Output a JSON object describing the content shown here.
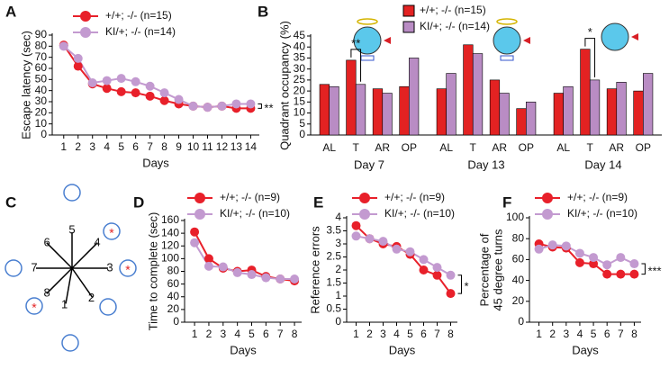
{
  "chart_data": [
    {
      "type": "line",
      "panel_label": "A",
      "ylabel": "Escape latency (sec)",
      "xlabel": "Days",
      "x": [
        1,
        2,
        3,
        4,
        5,
        6,
        7,
        8,
        9,
        10,
        11,
        12,
        13,
        14
      ],
      "xlim": [
        0.2,
        14.6
      ],
      "xticks": [
        1,
        2,
        3,
        4,
        5,
        6,
        7,
        8,
        9,
        10,
        11,
        12,
        13,
        14
      ],
      "ylim": [
        0,
        90
      ],
      "yticks": [
        0,
        10,
        20,
        30,
        40,
        50,
        60,
        70,
        80,
        90
      ],
      "series": [
        {
          "name": "+/+; -/- (n=15)",
          "color": "#e8202a",
          "values": [
            81,
            62,
            46,
            42,
            39,
            38,
            35,
            31,
            28,
            26,
            25,
            26,
            24,
            24
          ]
        },
        {
          "name": "KI/+; -/- (n=14)",
          "color": "#c39ad0",
          "values": [
            80,
            69,
            47,
            49,
            51,
            48,
            44,
            38,
            32,
            26,
            25,
            26,
            28,
            28
          ]
        }
      ],
      "annotation": "**"
    },
    {
      "type": "bar",
      "panel_label": "B",
      "ylabel": "Quadrant occupancy (%)",
      "categories": [
        "AL",
        "T",
        "AR",
        "OP",
        "AL",
        "T",
        "AR",
        "OP",
        "AL",
        "T",
        "AR",
        "OP"
      ],
      "groups": [
        "Day 7",
        "Day 13",
        "Day 14"
      ],
      "ylim": [
        0,
        45
      ],
      "yticks": [
        0,
        5,
        10,
        15,
        20,
        25,
        30,
        35,
        40,
        45
      ],
      "series": [
        {
          "name": "+/+; -/- (n=15)",
          "color": "#e32222",
          "values": [
            23,
            34,
            21,
            22,
            21,
            41,
            25,
            12,
            19,
            39,
            21,
            20
          ]
        },
        {
          "name": "KI/+; -/- (n=14)",
          "color": "#b98cc4",
          "values": [
            22,
            23,
            19,
            35,
            28,
            37,
            19,
            15,
            22,
            25,
            24,
            28
          ]
        }
      ],
      "annotations": [
        "**",
        "*"
      ]
    },
    {
      "type": "line",
      "panel_label": "D",
      "ylabel": "Time to complete (sec)",
      "xlabel": "Days",
      "x": [
        1,
        2,
        3,
        4,
        5,
        6,
        7,
        8
      ],
      "xlim": [
        0.3,
        8.5
      ],
      "xticks": [
        1,
        2,
        3,
        4,
        5,
        6,
        7,
        8
      ],
      "ylim": [
        0,
        160
      ],
      "yticks": [
        0,
        20,
        40,
        60,
        80,
        100,
        120,
        140,
        160
      ],
      "series": [
        {
          "name": "+/+; -/- (n=9)",
          "color": "#e8202a",
          "values": [
            142,
            100,
            85,
            80,
            82,
            72,
            68,
            65
          ]
        },
        {
          "name": "KI/+; -/- (n=10)",
          "color": "#c39ad0",
          "values": [
            125,
            88,
            87,
            78,
            75,
            70,
            68,
            68
          ]
        }
      ]
    },
    {
      "type": "line",
      "panel_label": "E",
      "ylabel": "Reference errors",
      "xlabel": "Days",
      "x": [
        1,
        2,
        3,
        4,
        5,
        6,
        7,
        8
      ],
      "xlim": [
        0.3,
        8.5
      ],
      "xticks": [
        1,
        2,
        3,
        4,
        5,
        6,
        7,
        8
      ],
      "ylim": [
        0,
        4
      ],
      "yticks": [
        0,
        0.5,
        1,
        1.5,
        2,
        2.5,
        3,
        3.5,
        4
      ],
      "series": [
        {
          "name": "+/+; -/- (n=9)",
          "color": "#e8202a",
          "values": [
            3.7,
            3.2,
            3.0,
            2.9,
            2.6,
            2.0,
            1.8,
            1.1
          ]
        },
        {
          "name": "KI/+; -/- (n=10)",
          "color": "#c39ad0",
          "values": [
            3.3,
            3.2,
            3.1,
            2.8,
            2.7,
            2.4,
            2.1,
            1.8
          ]
        }
      ],
      "annotation": "*"
    },
    {
      "type": "line",
      "panel_label": "F",
      "ylabel": [
        "Percentage of",
        "45 degree turns"
      ],
      "xlabel": "Days",
      "x": [
        1,
        2,
        3,
        4,
        5,
        6,
        7,
        8
      ],
      "xlim": [
        0.3,
        8.5
      ],
      "xticks": [
        1,
        2,
        3,
        4,
        5,
        6,
        7,
        8
      ],
      "ylim": [
        0,
        100
      ],
      "yticks": [
        0,
        20,
        40,
        60,
        80,
        100
      ],
      "series": [
        {
          "name": "+/+; -/- (n=9)",
          "color": "#e8202a",
          "values": [
            75,
            72,
            71,
            57,
            56,
            46,
            46,
            46
          ]
        },
        {
          "name": "KI/+; -/- (n=10)",
          "color": "#c39ad0",
          "values": [
            70,
            74,
            73,
            66,
            62,
            55,
            62,
            56
          ]
        }
      ],
      "annotation": "***"
    }
  ],
  "maze_diagram": {
    "panel_label": "C",
    "arm_labels": [
      "1",
      "2",
      "3",
      "4",
      "5",
      "6",
      "7",
      "8"
    ],
    "goal_marker": "*"
  }
}
